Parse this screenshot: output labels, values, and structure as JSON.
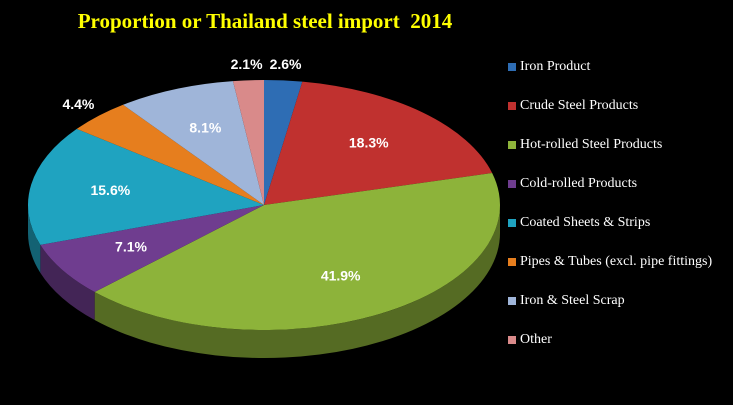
{
  "chart_data": {
    "type": "pie",
    "title": "Proportion or Thailand steel import  2014",
    "categories": [
      "Iron Product",
      "Crude Steel Products",
      "Hot-rolled Steel Products",
      "Cold-rolled Products",
      "Coated Sheets & Strips",
      "Pipes & Tubes (excl. pipe fittings)",
      "Iron & Steel Scrap",
      "Other"
    ],
    "values": [
      2.6,
      18.3,
      41.9,
      7.1,
      15.6,
      4.4,
      8.1,
      2.1
    ],
    "value_labels": [
      "2.6%",
      "18.3%",
      "41.9%",
      "7.1%",
      "15.6%",
      "4.4%",
      "8.1%",
      "2.1%"
    ],
    "colors": [
      "#2e6db4",
      "#c0312f",
      "#8db33a",
      "#6f3d8f",
      "#1fa3c0",
      "#e67e1e",
      "#9fb5d9",
      "#d98a8a"
    ],
    "legend": "right"
  }
}
